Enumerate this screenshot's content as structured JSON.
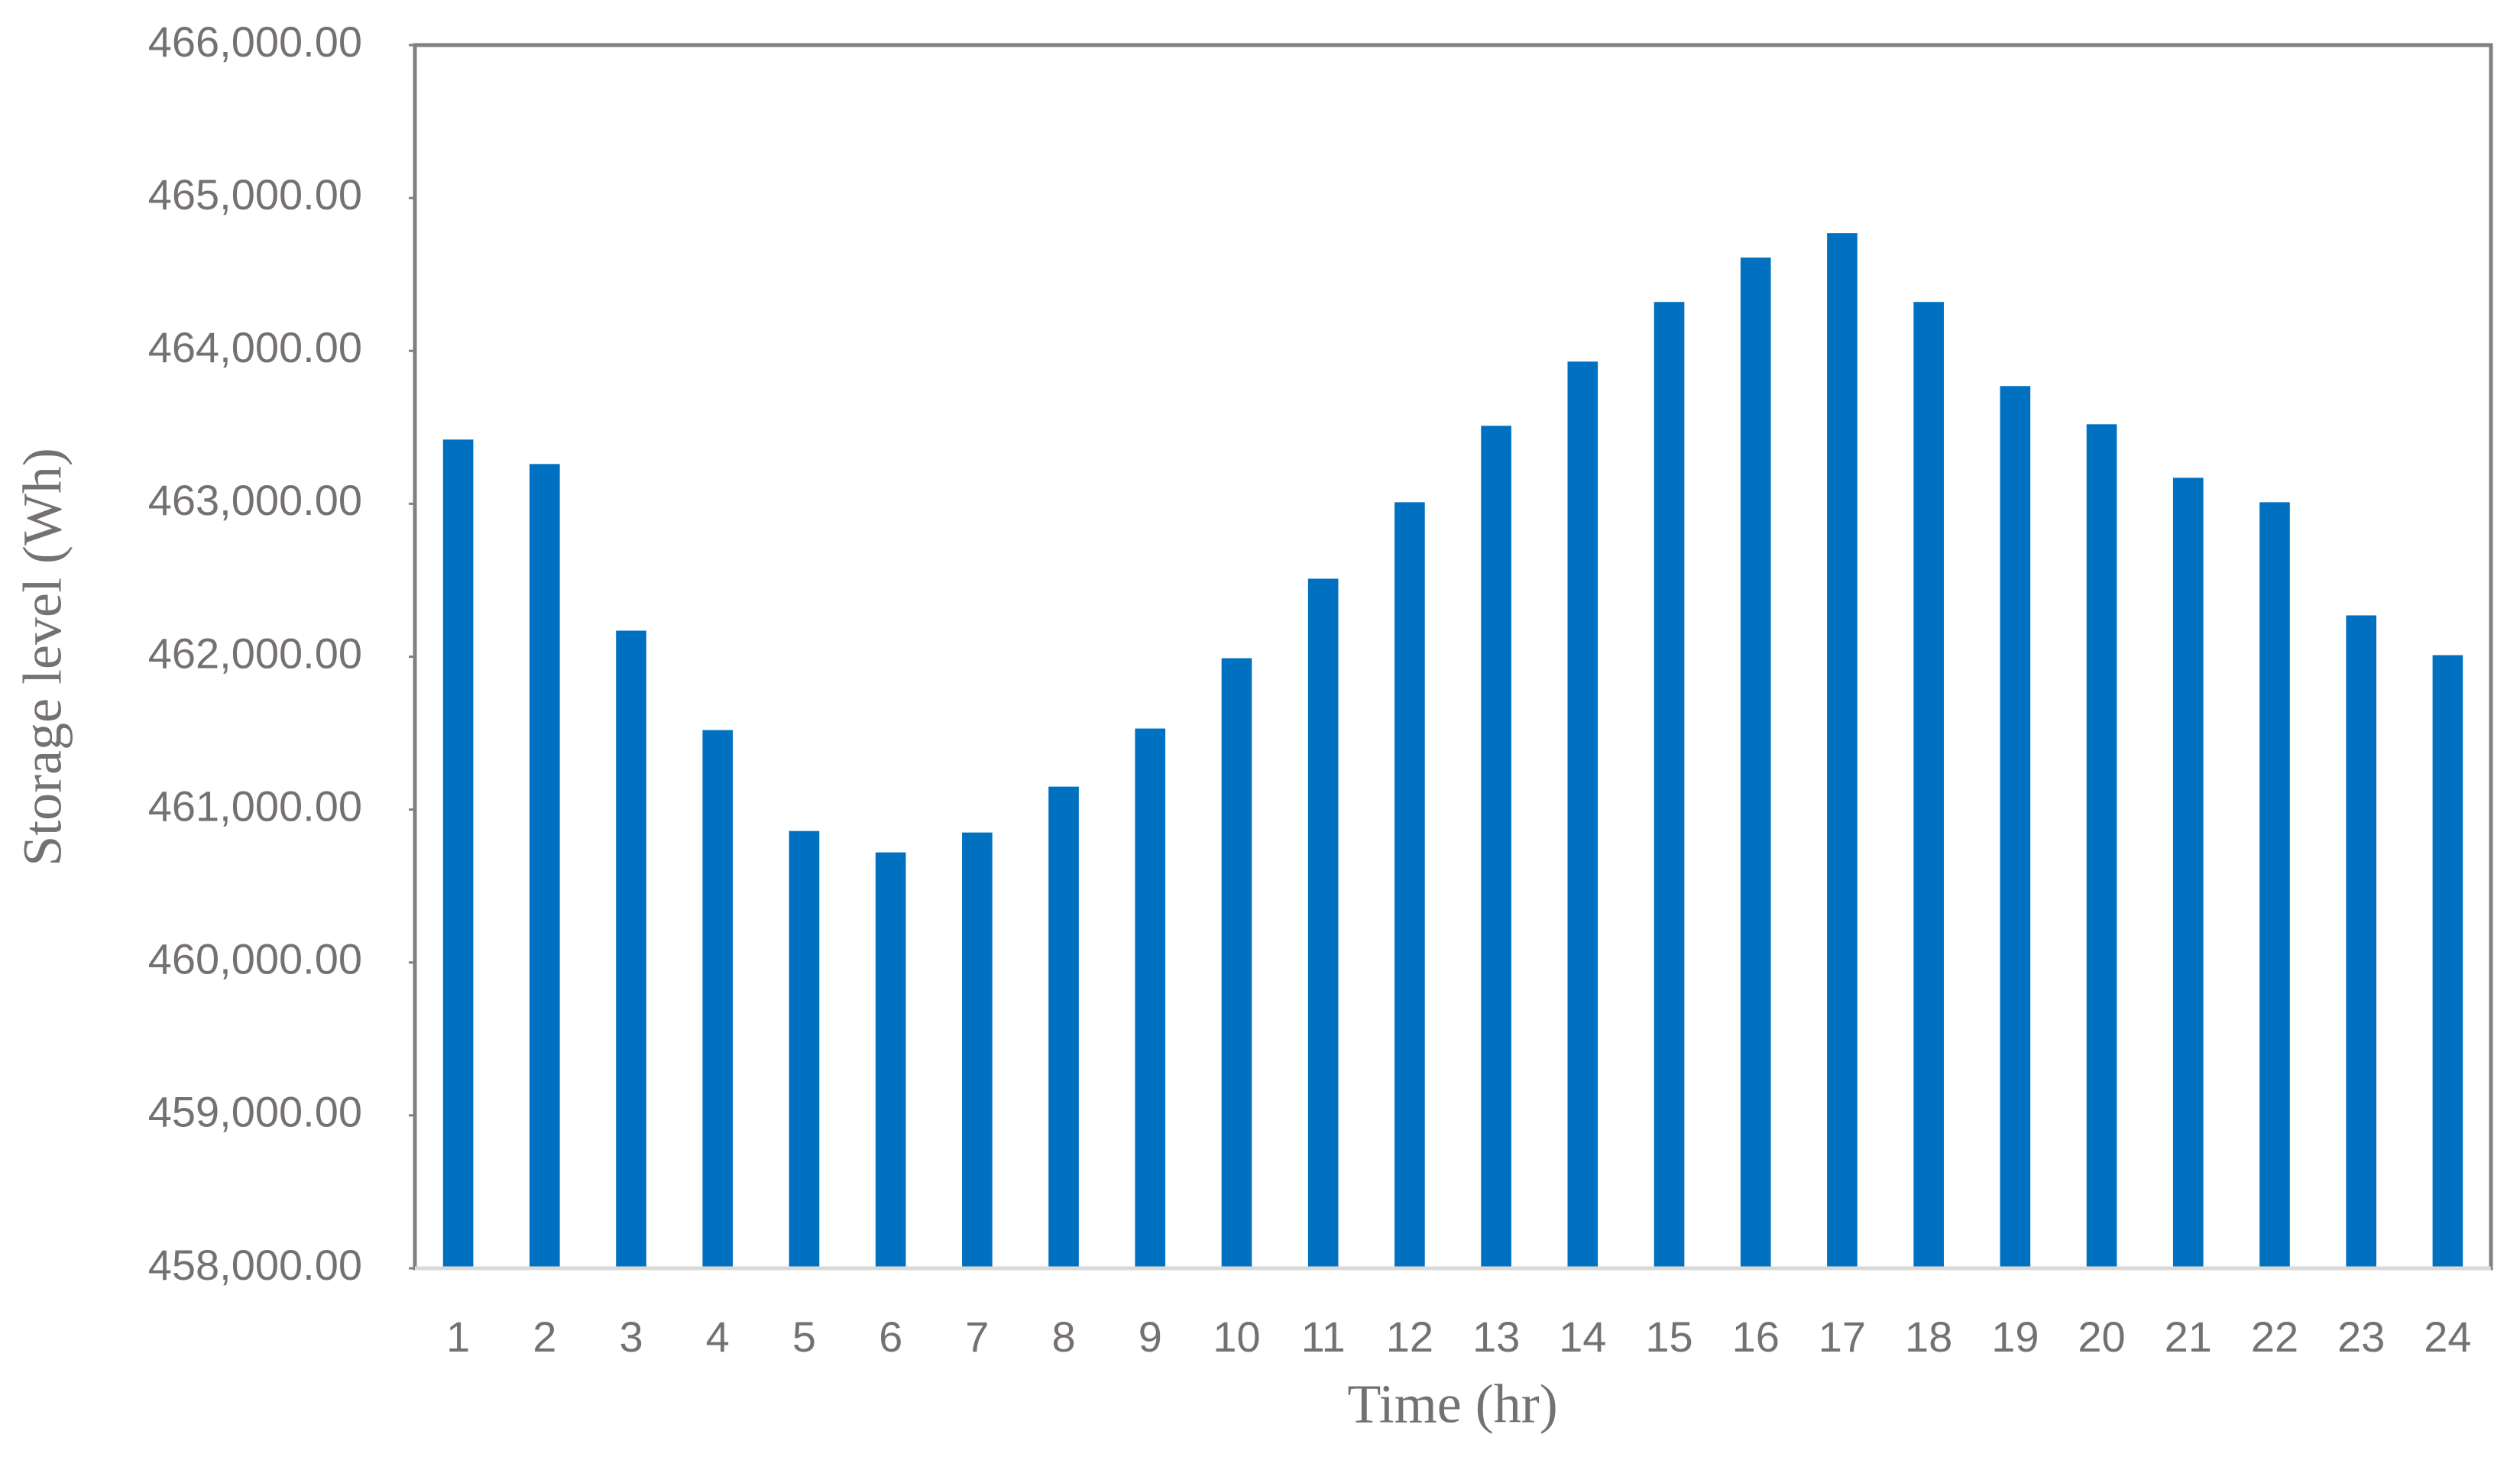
{
  "chart_data": {
    "type": "bar",
    "x_label": "Time (hr)",
    "y_label": "Storage level (Wh)",
    "categories": [
      "1",
      "2",
      "3",
      "4",
      "5",
      "6",
      "7",
      "8",
      "9",
      "10",
      "11",
      "12",
      "13",
      "14",
      "15",
      "16",
      "17",
      "18",
      "19",
      "20",
      "21",
      "22",
      "23",
      "24"
    ],
    "values": [
      463420,
      463260,
      462170,
      461520,
      460860,
      460720,
      460850,
      461150,
      461530,
      461990,
      462510,
      463010,
      463510,
      463930,
      464320,
      464610,
      464770,
      464320,
      463770,
      463520,
      463170,
      463010,
      462270,
      462010
    ],
    "color": "#0070c0",
    "ylim": [
      458000,
      466000
    ],
    "yticks": [
      {
        "value": 458000,
        "label": "458,000.00"
      },
      {
        "value": 459000,
        "label": "459,000.00"
      },
      {
        "value": 460000,
        "label": "460,000.00"
      },
      {
        "value": 461000,
        "label": "461,000.00"
      },
      {
        "value": 462000,
        "label": "462,000.00"
      },
      {
        "value": 463000,
        "label": "463,000.00"
      },
      {
        "value": 464000,
        "label": "464,000.00"
      },
      {
        "value": 465000,
        "label": "465,000.00"
      },
      {
        "value": 466000,
        "label": "466,000.00"
      }
    ],
    "grid": false
  }
}
